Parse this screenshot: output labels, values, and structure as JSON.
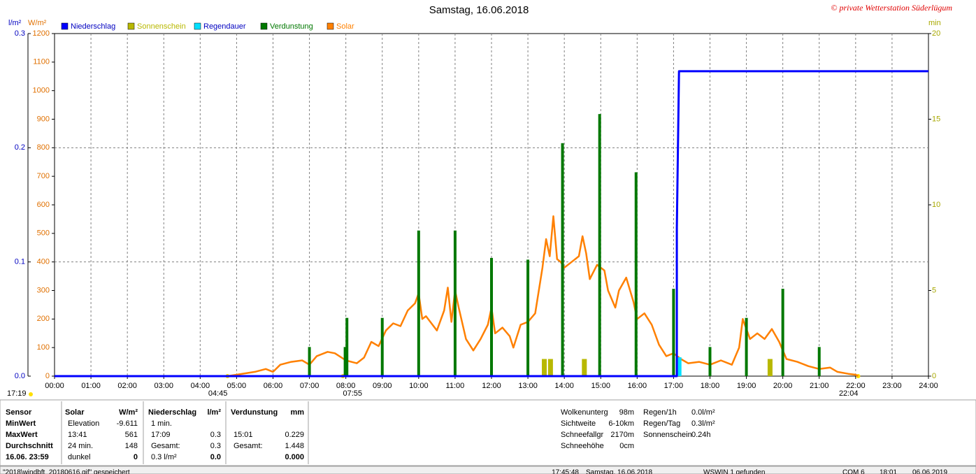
{
  "chart_data": {
    "type": "combo",
    "title": "Samstag, 16.06.2018",
    "credit": "© private Wetterstation Süderlügum",
    "y_unit": "l/m²",
    "y3_unit": "W/m²",
    "y2_unit": "min",
    "xlim": [
      0,
      24
    ],
    "xticks": [
      {
        "value": 0,
        "label": "00:00"
      },
      {
        "value": 1,
        "label": "01:00"
      },
      {
        "value": 2,
        "label": "02:00"
      },
      {
        "value": 3,
        "label": "03:00"
      },
      {
        "value": 4,
        "label": "04:00"
      },
      {
        "value": 5,
        "label": "05:00"
      },
      {
        "value": 6,
        "label": "06:00"
      },
      {
        "value": 7,
        "label": "07:00"
      },
      {
        "value": 8,
        "label": "08:00"
      },
      {
        "value": 9,
        "label": "09:00"
      },
      {
        "value": 10,
        "label": "10:00"
      },
      {
        "value": 11,
        "label": "11:00"
      },
      {
        "value": 12,
        "label": "12:00"
      },
      {
        "value": 13,
        "label": "13:00"
      },
      {
        "value": 14,
        "label": "14:00"
      },
      {
        "value": 15,
        "label": "15:00"
      },
      {
        "value": 16,
        "label": "16:00"
      },
      {
        "value": 17,
        "label": "17:00"
      },
      {
        "value": 18,
        "label": "18:00"
      },
      {
        "value": 19,
        "label": "19:00"
      },
      {
        "value": 20,
        "label": "20:00"
      },
      {
        "value": 21,
        "label": "21:00"
      },
      {
        "value": 22,
        "label": "22:00"
      },
      {
        "value": 23,
        "label": "23:00"
      },
      {
        "value": 24,
        "label": "24:00"
      }
    ],
    "ylim": [
      0,
      0.3
    ],
    "yticks": [
      {
        "value": 0,
        "label": "0.0"
      },
      0.1,
      0.2,
      0.3
    ],
    "y3lim": [
      0,
      1200
    ],
    "y3ticks": [
      0,
      100,
      200,
      300,
      400,
      500,
      600,
      700,
      800,
      900,
      1000,
      1100,
      1200
    ],
    "y2lim": [
      0,
      20
    ],
    "y2ticks": [
      0,
      5,
      10,
      15,
      20
    ],
    "grid": true,
    "annotations": [
      {
        "text": "04:45",
        "x": 4.75
      },
      {
        "text": "07:55",
        "x": 7.92
      },
      {
        "text": "22:04",
        "x": 22.07
      }
    ],
    "left_note": "17:19",
    "series": [
      {
        "name": "Niederschlag",
        "color": "#0000ff",
        "type": "line",
        "axis": "y",
        "x": [
          0,
          17.09,
          17.09,
          17.15,
          24
        ],
        "values": [
          0,
          0,
          0.13,
          0.267,
          0.267
        ]
      },
      {
        "name": "Sonnenschein",
        "color": "#b8b800",
        "type": "bar",
        "axis": "y2",
        "x": [
          13.45,
          13.62,
          14.55,
          19.65
        ],
        "values": [
          1.0,
          1.0,
          1.0,
          1.0
        ]
      },
      {
        "name": "Regendauer",
        "color": "#00e0ff",
        "type": "bar",
        "axis": "y2",
        "x": [
          17.15
        ],
        "values": [
          1.1
        ]
      },
      {
        "name": "Verdunstung",
        "color": "#007800",
        "type": "bar",
        "axis": "y2",
        "x": [
          7,
          7.98,
          8.03,
          9,
          10,
          11,
          12,
          13,
          13.95,
          14.97,
          15.97,
          17.0,
          18,
          19,
          20,
          21
        ],
        "values": [
          1.7,
          1.7,
          3.4,
          3.4,
          8.5,
          8.5,
          6.9,
          6.8,
          13.6,
          15.3,
          11.9,
          5.1,
          1.7,
          3.4,
          5.1,
          1.7
        ]
      },
      {
        "name": "Solar",
        "color": "#ff8000",
        "type": "line",
        "axis": "y3",
        "x": [
          4.75,
          5.0,
          5.5,
          5.8,
          6.0,
          6.2,
          6.5,
          6.8,
          7.0,
          7.2,
          7.5,
          7.7,
          8.0,
          8.3,
          8.5,
          8.7,
          8.9,
          9.1,
          9.3,
          9.5,
          9.7,
          9.9,
          10.0,
          10.1,
          10.2,
          10.5,
          10.7,
          10.8,
          10.9,
          11.0,
          11.1,
          11.3,
          11.5,
          11.7,
          11.9,
          12.0,
          12.1,
          12.3,
          12.5,
          12.6,
          12.8,
          13.0,
          13.2,
          13.4,
          13.5,
          13.6,
          13.7,
          13.8,
          13.9,
          14.0,
          14.2,
          14.4,
          14.5,
          14.6,
          14.7,
          14.9,
          15.1,
          15.2,
          15.4,
          15.5,
          15.7,
          15.9,
          16.0,
          16.2,
          16.4,
          16.6,
          16.8,
          17.0,
          17.2,
          17.4,
          17.7,
          18.0,
          18.3,
          18.6,
          18.8,
          18.9,
          19.1,
          19.3,
          19.5,
          19.7,
          19.9,
          20.1,
          20.4,
          20.7,
          21.0,
          21.3,
          21.5,
          21.8,
          22.0,
          22.07
        ],
        "values": [
          0,
          5,
          15,
          25,
          15,
          40,
          50,
          55,
          40,
          70,
          85,
          80,
          55,
          45,
          65,
          120,
          105,
          160,
          185,
          175,
          230,
          255,
          290,
          200,
          210,
          160,
          230,
          310,
          190,
          300,
          240,
          130,
          90,
          130,
          180,
          240,
          150,
          170,
          140,
          100,
          180,
          190,
          220,
          380,
          480,
          420,
          560,
          410,
          400,
          380,
          400,
          420,
          490,
          430,
          340,
          390,
          370,
          300,
          240,
          300,
          345,
          260,
          200,
          220,
          180,
          110,
          70,
          80,
          60,
          45,
          50,
          40,
          55,
          40,
          100,
          200,
          130,
          150,
          130,
          165,
          120,
          60,
          50,
          35,
          25,
          30,
          15,
          8,
          5,
          0
        ]
      }
    ]
  },
  "info": {
    "labels": [
      "Sensor",
      "MinWert",
      "MaxWert",
      "Durchschnitt",
      "16.06. 23:59"
    ],
    "solar": {
      "title": "Solar",
      "unit": "W/m²",
      "c1": [
        "Elevation",
        "13:41",
        "24 min.",
        "dunkel"
      ],
      "c2": [
        "-9.611",
        "561",
        "148",
        "0"
      ]
    },
    "niederschlag": {
      "title": "Niederschlag",
      "unit": "l/m²",
      "c1": [
        "1 min.",
        "17:09",
        "Gesamt:",
        "0.3 l/m²"
      ],
      "c2": [
        "0.3",
        "0.3",
        "0.0"
      ]
    },
    "verdunstung": {
      "title": "Verdunstung",
      "unit": "mm",
      "c1": [
        "15:01",
        "Gesamt:"
      ],
      "c2": [
        "0.229",
        "1.448",
        "0.000"
      ]
    },
    "weather": [
      [
        "Wolkenunterg",
        "98m"
      ],
      [
        "Sichtweite",
        "6-10km"
      ],
      [
        "Schneefallgr",
        "2170m"
      ],
      [
        "Schneehöhe",
        "0cm"
      ]
    ],
    "rain": [
      [
        "Regen/1h",
        "0.0l/m²"
      ],
      [
        "Regen/Tag",
        "0.3l/m²"
      ],
      [
        "Sonnenschein",
        "0.24h"
      ]
    ]
  },
  "status": [
    "\"2018\\windbft_20180616.gif\" gespeichert",
    "17:45:48",
    "Samstag, 16.06.2018",
    "WSWIN 1 gefunden",
    "COM 6",
    "18:01",
    "06.06.2019"
  ]
}
